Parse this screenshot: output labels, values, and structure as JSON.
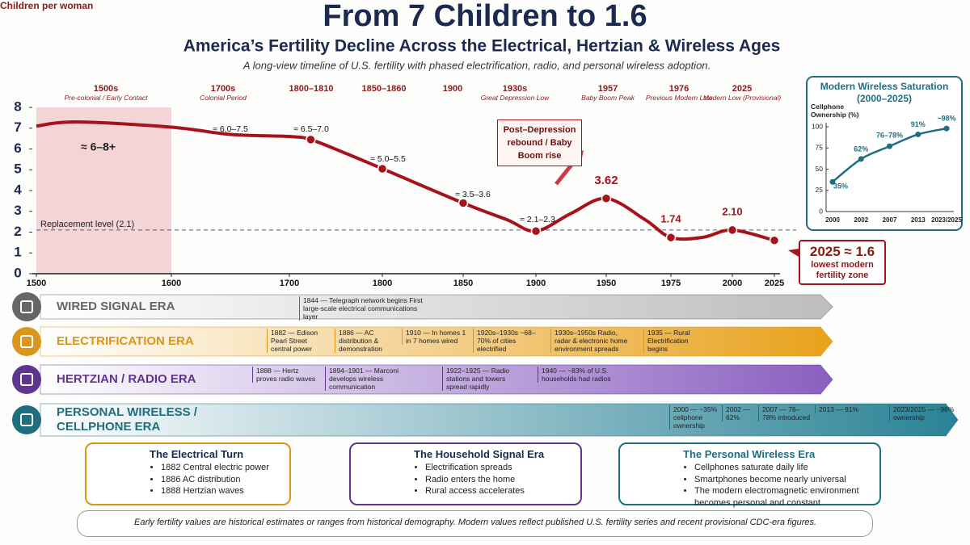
{
  "header": {
    "title": "From 7 Children to 1.6",
    "subtitle": "America’s Fertility Decline Across the Electrical, Hertzian & Wireless Ages",
    "tagline": "A long-view timeline of U.S. fertility with phased electrification, radio, and personal wireless adoption."
  },
  "chart_data": [
    {
      "type": "line",
      "y_label": "Children per woman",
      "color": "#a5141b",
      "x": [
        1500,
        1530,
        1600,
        1650,
        1700,
        1723,
        1760,
        1800,
        1850,
        1880,
        1900,
        1925,
        1950,
        1965,
        1975,
        1988,
        2000,
        2025
      ],
      "values": [
        7.1,
        7.3,
        7.05,
        6.7,
        6.6,
        6.45,
        5.8,
        5.05,
        3.4,
        2.6,
        2.05,
        2.9,
        3.62,
        2.6,
        1.74,
        1.75,
        2.1,
        1.6
      ],
      "value_labels": [
        null,
        null,
        null,
        null,
        null,
        null,
        null,
        null,
        null,
        null,
        null,
        null,
        "3.62",
        null,
        "1.74",
        null,
        "2.10",
        null
      ],
      "xlim": [
        1500,
        2025
      ],
      "xticks": [
        1500,
        1600,
        1700,
        1800,
        1850,
        1900,
        1950,
        1975,
        2000,
        2025
      ],
      "ylim": [
        0,
        8
      ],
      "yticks": [
        0,
        1,
        2,
        3,
        4,
        5,
        6,
        7,
        8
      ],
      "reference": {
        "value": 2.1,
        "label": "Replacement level (2.1)"
      },
      "shaded": {
        "x": [
          1500,
          1600
        ],
        "label": "≈ 6–8+"
      },
      "periods": [
        {
          "title": "1500s",
          "subtitle": "Pre-colonial / Early Contact"
        },
        {
          "title": "1700s",
          "subtitle": "Colonial Period"
        },
        {
          "title": "1800–1810"
        },
        {
          "title": "1850–1860"
        },
        {
          "title": "1900"
        },
        {
          "title": "1930s",
          "subtitle": "Great Depression Low"
        },
        {
          "title": "1957",
          "subtitle": "Baby Boom Peak"
        },
        {
          "title": "1976",
          "subtitle": "Previous Modern Low"
        },
        {
          "title": "2025",
          "subtitle": "Modern Low (Provisional)"
        }
      ],
      "annotations": [
        "≈ 6.0–7.5",
        "≈ 6.5–7.0",
        "≈ 5.0–5.5",
        "≈ 3.5–3.6",
        "≈ 2.1–2.3"
      ],
      "callouts": [
        {
          "title": "Post–Depression rebound / Baby Boom rise"
        },
        {
          "title": "2025 ≈ 1.6",
          "text": "lowest modern fertility zone"
        }
      ]
    },
    {
      "type": "line",
      "title": "Modern Wireless Saturation (2000–2025)",
      "y_label": "Cellphone Ownership (%)",
      "color": "#1f6e80",
      "categories": [
        "2000",
        "2002",
        "2007",
        "2013",
        "2023/2025"
      ],
      "values": [
        35,
        62,
        77,
        91,
        98
      ],
      "value_labels": [
        "35%",
        "62%",
        "76–78%",
        "91%",
        "~98%"
      ],
      "ylim": [
        0,
        100
      ],
      "yticks": [
        0,
        25,
        50,
        75,
        100
      ]
    }
  ],
  "eras": [
    {
      "name": "WIRED SIGNAL ERA",
      "color": "#666666",
      "events": [
        "1844 — Telegraph network begins First large-scale electrical communications layer"
      ]
    },
    {
      "name": "ELECTRIFICATION ERA",
      "color": "#d9961a",
      "events": [
        "1882 — Edison Pearl Street central power",
        "1886 — AC distribution & demonstration",
        "1910 — In homes 1 in 7 homes wired",
        "1920s–1930s ~68–70% of cities electrified",
        "1930s–1950s Radio, radar & electronic home environment spreads",
        "1935 — Rural Electrification begins"
      ]
    },
    {
      "name": "HERTZIAN / RADIO ERA",
      "color": "#5e3590",
      "events": [
        "1888 — Hertz proves radio waves",
        "1894–1901 — Marconi develops wireless communication",
        "1922–1925 — Radio stations and towers spread rapidly",
        "1940 — ~83% of U.S. households had radios"
      ]
    },
    {
      "name": "PERSONAL WIRELESS / CELLPHONE ERA",
      "color": "#1f6e80",
      "events": [
        "2000 — ~35% cellphone ownership",
        "2002 — 62%",
        "2007 — 76–78% introduced",
        "2013 — 91%",
        "2023/2025 — ~98% ownership"
      ]
    }
  ],
  "cards": [
    {
      "title": "The Electrical Turn",
      "bullets": [
        "1882 Central electric power",
        "1886 AC distribution",
        "1888 Hertzian waves"
      ]
    },
    {
      "title": "The Household Signal Era",
      "bullets": [
        "Electrification spreads",
        "Radio enters the home",
        "Rural access accelerates"
      ]
    },
    {
      "title": "The Personal Wireless Era",
      "bullets": [
        "Cellphones saturate daily life",
        "Smartphones become nearly universal",
        "The modern electromagnetic environment becomes personal and constant"
      ]
    }
  ],
  "note": "Early fertility values are historical estimates or ranges from historical demography. Modern values reflect published U.S. fertility series and recent provisional CDC-era figures."
}
